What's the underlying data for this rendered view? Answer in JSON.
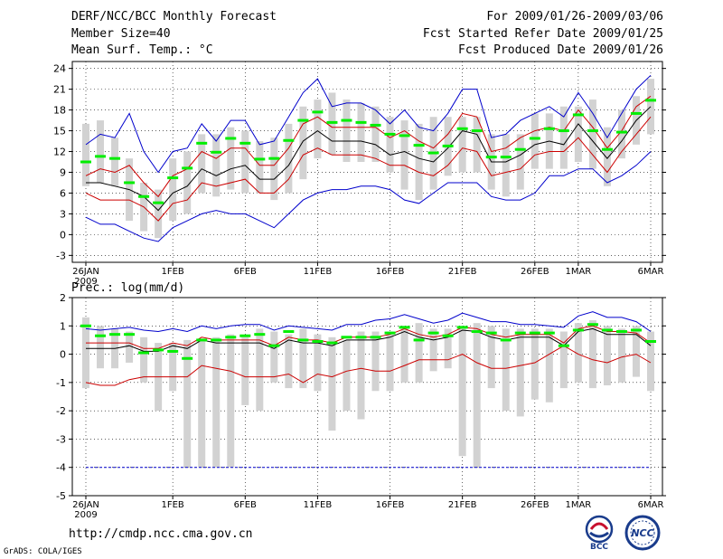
{
  "header": {
    "left": [
      "DERF/NCC/BCC Monthly Forecast",
      "Member Size=40",
      "Mean Surf. Temp.: °C"
    ],
    "right": [
      "For 2009/01/26-2009/03/06",
      "Fcst Started Refer Date 2009/01/25",
      "Fcst Produced Date 2009/01/26"
    ]
  },
  "footer": {
    "url": "http://cmdp.ncc.cma.gov.cn",
    "grads": "GrADS: COLA/IGES",
    "logo_left": "BCC",
    "logo_right": "NCC"
  },
  "colors": {
    "bar": "#d2d2d2",
    "mean": "#00ee00",
    "envelope": "#0000cc",
    "spread": "#cc0000",
    "median": "#000000"
  },
  "chart_data": [
    {
      "type": "line",
      "title": "Mean Surf. Temp.: °C",
      "ylim": [
        -4,
        25
      ],
      "yticks": [
        -3,
        0,
        3,
        6,
        9,
        12,
        15,
        18,
        21,
        24
      ],
      "xticks": [
        {
          "i": 0,
          "label": "26JAN",
          "sub": "2009"
        },
        {
          "i": 6,
          "label": "1FEB"
        },
        {
          "i": 11,
          "label": "6FEB"
        },
        {
          "i": 16,
          "label": "11FEB"
        },
        {
          "i": 21,
          "label": "16FEB"
        },
        {
          "i": 26,
          "label": "21FEB"
        },
        {
          "i": 31,
          "label": "26FEB"
        },
        {
          "i": 34,
          "label": "1MAR"
        },
        {
          "i": 39,
          "label": "6MAR"
        }
      ],
      "bars": {
        "low": [
          7,
          7.5,
          7,
          2,
          0.5,
          -0.5,
          2,
          3,
          6,
          5.5,
          6.5,
          6,
          6,
          5,
          6,
          8,
          11,
          11.5,
          10.5,
          10.5,
          10.5,
          9,
          6.5,
          5,
          6.5,
          8.5,
          9,
          9,
          6.5,
          5.5,
          6.5,
          9.5,
          9.5,
          9.5,
          10.5,
          9.5,
          7,
          11,
          13,
          14.5
        ],
        "high": [
          16,
          16.5,
          14,
          11,
          7.5,
          6.5,
          11,
          12,
          14.5,
          14.5,
          15.5,
          15,
          13.5,
          14,
          16,
          18.5,
          19.5,
          20.5,
          19.5,
          19,
          18.5,
          17,
          16.5,
          16,
          17,
          17,
          17,
          17,
          14.5,
          14.5,
          14.5,
          17.5,
          17.5,
          18.5,
          18.5,
          19.5,
          15.5,
          18,
          20,
          22.5
        ]
      },
      "series": [
        {
          "name": "mean",
          "values": [
            10.5,
            11.3,
            11,
            7.5,
            5.5,
            4.6,
            8.2,
            9.6,
            13.2,
            11.9,
            13.9,
            13.2,
            10.9,
            11,
            13.6,
            16.5,
            17.7,
            16.2,
            16.5,
            16.2,
            15.8,
            14.5,
            14.3,
            12.9,
            11.8,
            12.8,
            15.3,
            15,
            11.2,
            11.2,
            12.3,
            13.9,
            15.3,
            15,
            17.3,
            15,
            12.3,
            14.8,
            17.5,
            19.4
          ]
        },
        {
          "name": "envelope-max",
          "values": [
            13,
            14.5,
            14,
            17.5,
            12,
            9,
            12,
            12.5,
            16,
            13.5,
            16.5,
            16.5,
            13,
            13.5,
            17,
            20.5,
            22.5,
            18.5,
            19,
            19,
            18,
            16,
            18,
            15.5,
            15,
            17.5,
            21,
            21,
            14,
            14.5,
            16.5,
            17.5,
            18.5,
            17,
            20.5,
            17.5,
            14,
            17.5,
            21,
            23
          ]
        },
        {
          "name": "spread-upper",
          "values": [
            8.5,
            9.5,
            9,
            10,
            7.5,
            5.5,
            8.5,
            9.5,
            12,
            11,
            12.5,
            12.5,
            10,
            10,
            12.5,
            16,
            17,
            15.5,
            15.5,
            15.5,
            15.5,
            14,
            15,
            13.5,
            12.5,
            14.5,
            17.5,
            17,
            12,
            12.5,
            14,
            15,
            15.5,
            15,
            18,
            15.5,
            12.5,
            15,
            18.5,
            20
          ]
        },
        {
          "name": "median",
          "values": [
            7.5,
            7.5,
            7,
            6.5,
            5.5,
            3.5,
            6,
            7,
            9.5,
            8.5,
            9.5,
            10,
            8,
            8,
            10,
            13.5,
            15,
            13.5,
            13.5,
            13.5,
            13,
            11.5,
            12,
            11,
            10.5,
            12.5,
            15,
            14.5,
            10.5,
            10.5,
            11.5,
            13,
            13.5,
            13,
            16,
            13.5,
            11,
            13.5,
            16.5,
            18.5
          ]
        },
        {
          "name": "spread-lower",
          "values": [
            6,
            5,
            5,
            5,
            4,
            2,
            4.5,
            5,
            7.5,
            7,
            7.5,
            8,
            6,
            6,
            8,
            11.5,
            12.5,
            11.5,
            11.5,
            11.5,
            11,
            10,
            10,
            9,
            8.5,
            10,
            12.5,
            12,
            8.5,
            9,
            9.5,
            11.5,
            12,
            12,
            14,
            11.5,
            9,
            12,
            14.5,
            17
          ]
        },
        {
          "name": "envelope-min",
          "values": [
            2.5,
            1.5,
            1.5,
            0.5,
            -0.5,
            -1,
            1,
            2,
            3,
            3.5,
            3,
            3,
            2,
            1,
            3,
            5,
            6,
            6.5,
            6.5,
            7,
            7,
            6.5,
            5,
            4.5,
            6,
            7.5,
            7.5,
            7.5,
            5.5,
            5,
            5,
            6,
            8.5,
            8.5,
            9.5,
            9.5,
            7.5,
            8.5,
            10,
            12
          ]
        }
      ]
    },
    {
      "type": "line",
      "title": "Prec.: log(mm/d)",
      "ylim": [
        -5,
        2
      ],
      "yticks": [
        -5,
        -4,
        -3,
        -2,
        -1,
        0,
        1,
        2
      ],
      "xticks": [
        {
          "i": 0,
          "label": "26JAN",
          "sub": "2009"
        },
        {
          "i": 6,
          "label": "1FEB"
        },
        {
          "i": 11,
          "label": "6FEB"
        },
        {
          "i": 16,
          "label": "11FEB"
        },
        {
          "i": 21,
          "label": "16FEB"
        },
        {
          "i": 26,
          "label": "21FEB"
        },
        {
          "i": 31,
          "label": "26FEB"
        },
        {
          "i": 34,
          "label": "1MAR"
        },
        {
          "i": 39,
          "label": "6MAR"
        }
      ],
      "bars": {
        "low": [
          -1.2,
          -0.5,
          -0.5,
          -0.3,
          -1,
          -2,
          -1.3,
          -4,
          -4,
          -4,
          -4,
          -1.8,
          -2,
          -1,
          -1.2,
          -1.2,
          -1.3,
          -2.7,
          -2,
          -2.3,
          -1.3,
          -1.3,
          -1,
          -1,
          -0.6,
          -0.5,
          -3.6,
          -4,
          -1.2,
          -2,
          -2.2,
          -1.6,
          -1.7,
          -1.2,
          -1,
          -1.2,
          -1.1,
          -1,
          -0.8,
          -1.3
        ],
        "high": [
          1.3,
          1,
          0.9,
          0.8,
          0.6,
          0.4,
          0.4,
          0.5,
          0.5,
          0.6,
          0.7,
          0.6,
          0.9,
          0.8,
          0.7,
          0.9,
          0.7,
          0.6,
          0.5,
          0.8,
          0.8,
          0.8,
          1,
          1.1,
          0.9,
          0.9,
          1,
          1.1,
          1,
          0.9,
          0.9,
          0.9,
          0.9,
          0.8,
          1.1,
          1.2,
          1,
          0.9,
          1,
          0.8
        ]
      },
      "series": [
        {
          "name": "mean",
          "values": [
            1,
            0.65,
            0.7,
            0.7,
            0.05,
            0.15,
            0.1,
            -0.15,
            0.5,
            0.5,
            0.6,
            0.65,
            0.7,
            0.3,
            0.8,
            0.5,
            0.45,
            0.4,
            0.6,
            0.6,
            0.6,
            0.75,
            0.95,
            0.5,
            0.75,
            0.65,
            0.95,
            0.8,
            0.75,
            0.5,
            0.75,
            0.75,
            0.75,
            0.3,
            0.85,
            1.05,
            0.85,
            0.8,
            0.85,
            0.45
          ]
        },
        {
          "name": "envelope-max",
          "values": [
            0.9,
            0.85,
            0.9,
            0.95,
            0.85,
            0.8,
            0.9,
            0.8,
            1,
            0.9,
            1,
            1.05,
            1.05,
            0.85,
            1,
            0.95,
            0.9,
            0.85,
            1.05,
            1.05,
            1.2,
            1.25,
            1.4,
            1.25,
            1.1,
            1.2,
            1.45,
            1.3,
            1.15,
            1.15,
            1.05,
            1.05,
            1,
            0.95,
            1.35,
            1.5,
            1.3,
            1.3,
            1.15,
            0.8
          ]
        },
        {
          "name": "spread-upper",
          "values": [
            0.4,
            0.4,
            0.4,
            0.4,
            0.2,
            0.2,
            0.4,
            0.3,
            0.6,
            0.5,
            0.5,
            0.5,
            0.5,
            0.3,
            0.6,
            0.5,
            0.5,
            0.4,
            0.6,
            0.6,
            0.6,
            0.7,
            0.9,
            0.7,
            0.6,
            0.7,
            0.95,
            0.9,
            0.7,
            0.6,
            0.7,
            0.7,
            0.7,
            0.4,
            0.9,
            1,
            0.8,
            0.8,
            0.75,
            0.4
          ]
        },
        {
          "name": "median",
          "values": [
            0.2,
            0.2,
            0.2,
            0.3,
            0.1,
            0.1,
            0.3,
            0.2,
            0.5,
            0.4,
            0.4,
            0.4,
            0.4,
            0.2,
            0.5,
            0.4,
            0.4,
            0.3,
            0.5,
            0.5,
            0.5,
            0.6,
            0.8,
            0.6,
            0.5,
            0.6,
            0.85,
            0.8,
            0.6,
            0.5,
            0.6,
            0.6,
            0.6,
            0.3,
            0.8,
            0.9,
            0.7,
            0.7,
            0.7,
            0.3
          ]
        },
        {
          "name": "spread-lower",
          "values": [
            -1,
            -1.1,
            -1.1,
            -0.9,
            -0.8,
            -0.8,
            -0.8,
            -0.8,
            -0.4,
            -0.5,
            -0.6,
            -0.8,
            -0.8,
            -0.8,
            -0.7,
            -1,
            -0.7,
            -0.8,
            -0.6,
            -0.5,
            -0.6,
            -0.6,
            -0.4,
            -0.2,
            -0.2,
            -0.2,
            0,
            -0.3,
            -0.5,
            -0.5,
            -0.4,
            -0.3,
            0,
            0.3,
            0,
            -0.2,
            -0.3,
            -0.1,
            0,
            -0.3
          ]
        },
        {
          "name": "envelope-min",
          "values": [
            -4,
            -4,
            -4,
            -4,
            -4,
            -4,
            -4,
            -4,
            -4,
            -4,
            -4,
            -4,
            -4,
            -4,
            -4,
            -4,
            -4,
            -4,
            -4,
            -4,
            -4,
            -4,
            -4,
            -4,
            -4,
            -4,
            -4,
            -4,
            -4,
            -4,
            -4,
            -4,
            -4,
            -4,
            -4,
            -4,
            -4,
            -4,
            -4,
            -4
          ]
        }
      ]
    }
  ]
}
